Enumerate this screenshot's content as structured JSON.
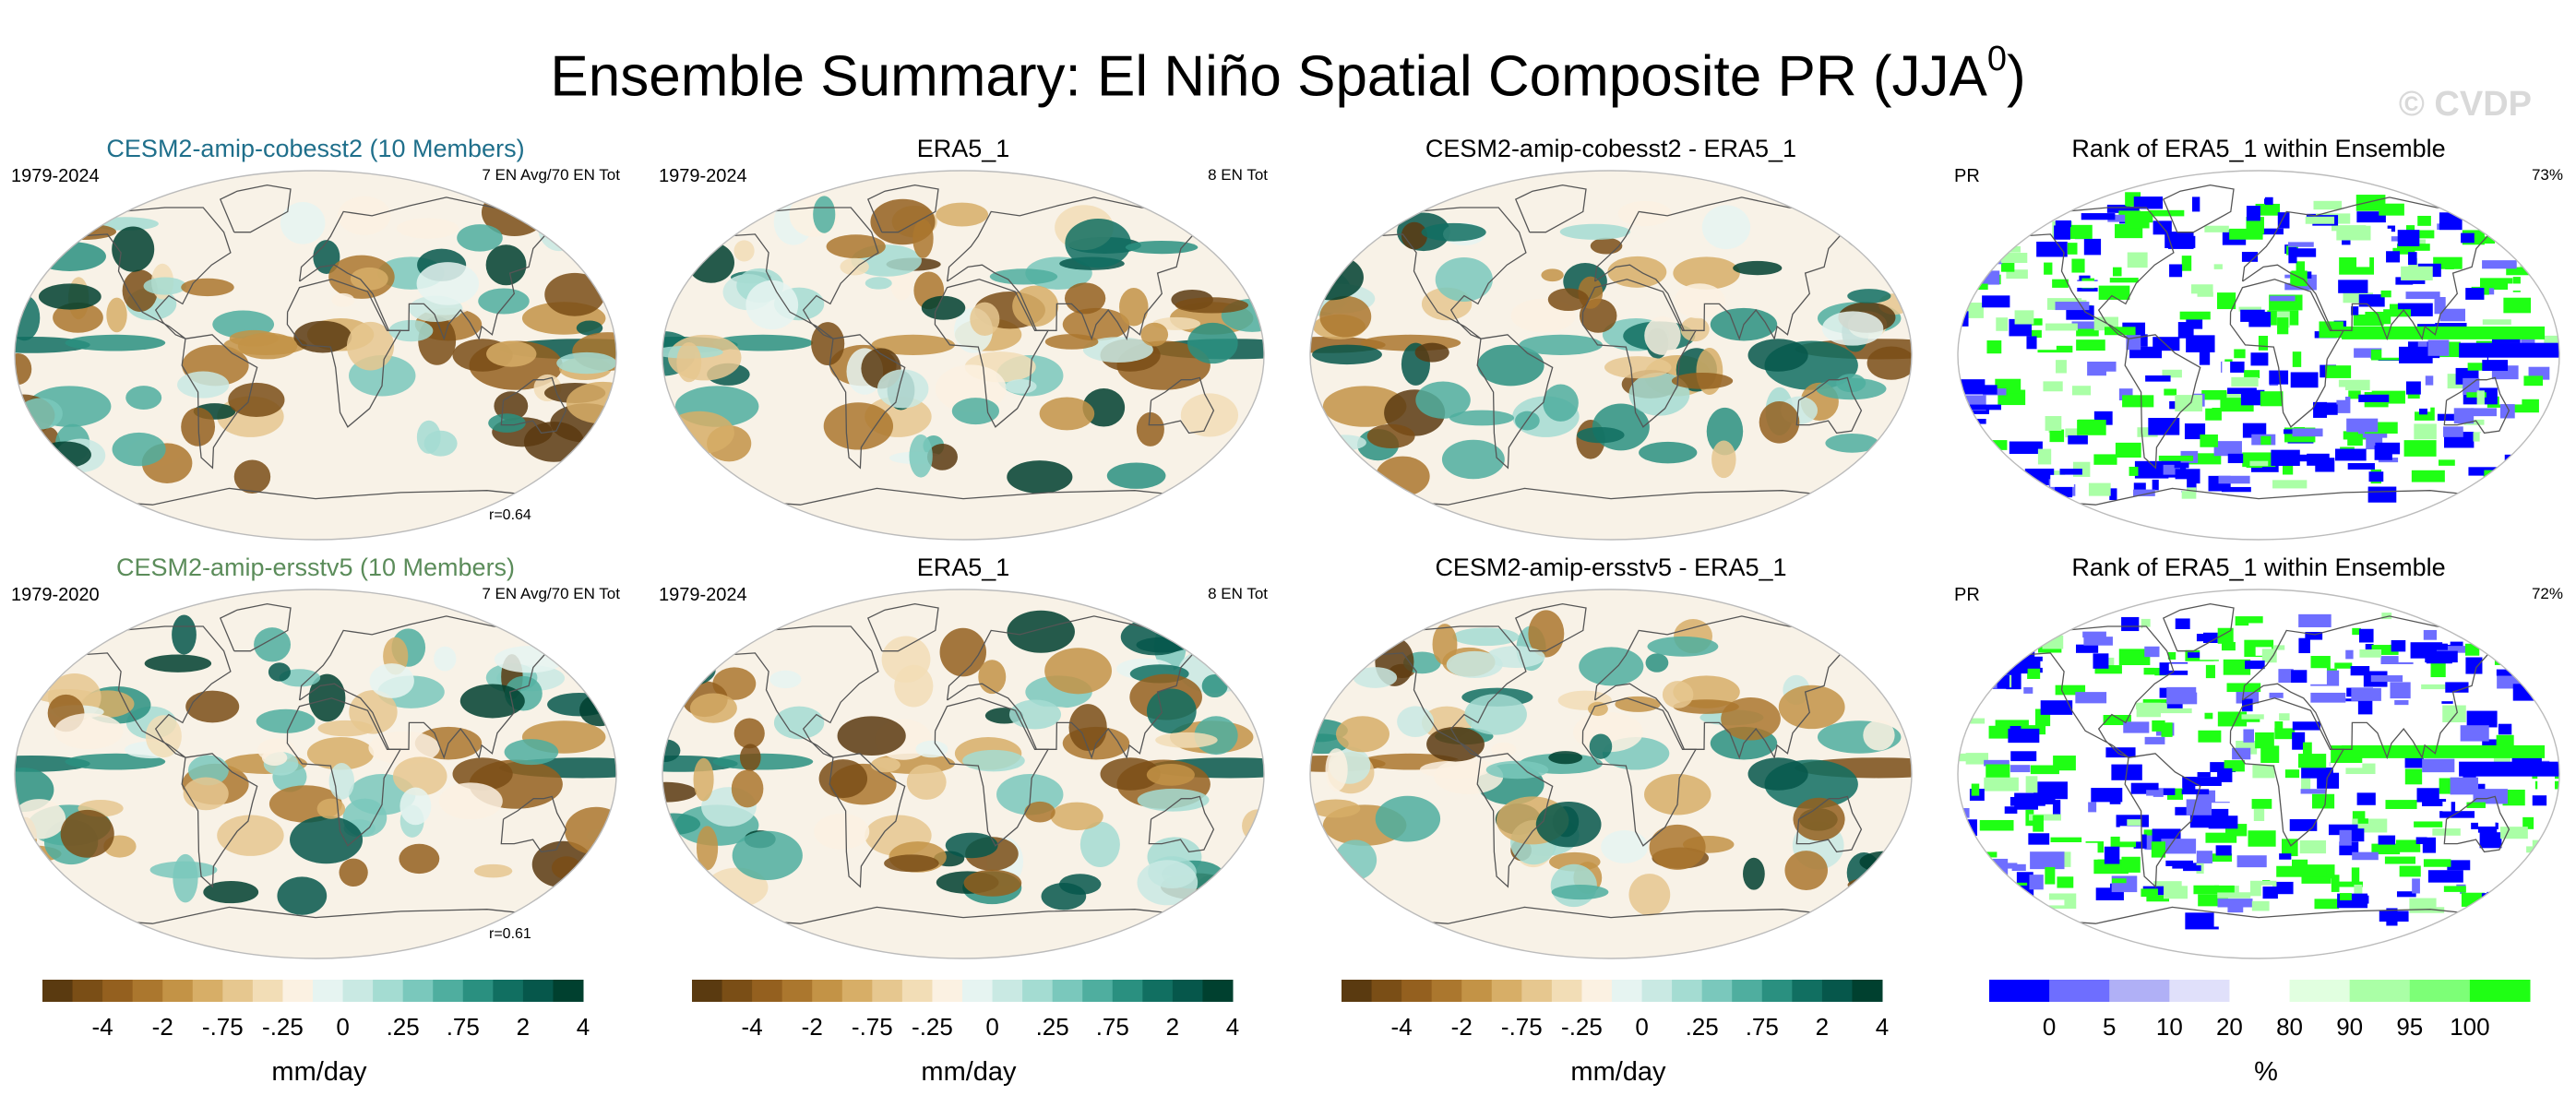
{
  "title": {
    "main": "Ensemble Summary: El Niño Spatial Composite PR (JJA",
    "sup": "0",
    "close": ")"
  },
  "watermark": "© CVDP",
  "colors": {
    "brown": [
      "#5a3a10",
      "#7a4e16",
      "#94601f",
      "#ab772e",
      "#c39346",
      "#d7ae67",
      "#e6c78f",
      "#f2ddb6",
      "#fbf1e2",
      "#e6f4f1",
      "#c9e9e3",
      "#a4dcd2",
      "#7ac8bc",
      "#4fae9f",
      "#2a9080",
      "#116f61",
      "#06574b",
      "#00402f"
    ],
    "rank": [
      "#0000ff",
      "#6e6eff",
      "#b0b0f6",
      "#e0e0fa",
      "#ffffff",
      "#e1ffe0",
      "#aaffa6",
      "#7dff77",
      "#1fff14"
    ]
  },
  "panels": [
    {
      "title": "CESM2-amip-cobesst2 (10 Members)",
      "title_color": "#1f6f8b",
      "left": "1979-2024",
      "right": "7 EN Avg/70 EN Tot",
      "corr": "r=0.64",
      "kind": "div"
    },
    {
      "title": "ERA5_1",
      "title_color": "#000000",
      "left": "1979-2024",
      "right": "8 EN Tot",
      "corr": "",
      "kind": "div"
    },
    {
      "title": "CESM2-amip-cobesst2 - ERA5_1",
      "title_color": "#000000",
      "left": "",
      "right": "",
      "corr": "",
      "kind": "div"
    },
    {
      "title": "Rank of ERA5_1 within Ensemble",
      "title_color": "#000000",
      "left": "PR",
      "right": "73%",
      "corr": "",
      "kind": "rank"
    },
    {
      "title": "CESM2-amip-ersstv5 (10 Members)",
      "title_color": "#5b8c5a",
      "left": "1979-2020",
      "right": "7 EN Avg/70 EN Tot",
      "corr": "r=0.61",
      "kind": "div"
    },
    {
      "title": "ERA5_1",
      "title_color": "#000000",
      "left": "1979-2024",
      "right": "8 EN Tot",
      "corr": "",
      "kind": "div"
    },
    {
      "title": "CESM2-amip-ersstv5 - ERA5_1",
      "title_color": "#000000",
      "left": "",
      "right": "",
      "corr": "",
      "kind": "div"
    },
    {
      "title": "Rank of ERA5_1 within Ensemble",
      "title_color": "#000000",
      "left": "PR",
      "right": "72%",
      "corr": "",
      "kind": "rank"
    }
  ],
  "colorbars": [
    {
      "ticks": [
        "-4",
        "-2",
        "-.75",
        "-.25",
        "0",
        ".25",
        ".75",
        "2",
        "4"
      ],
      "label": "mm/day",
      "kind": "div"
    },
    {
      "ticks": [
        "-4",
        "-2",
        "-.75",
        "-.25",
        "0",
        ".25",
        ".75",
        "2",
        "4"
      ],
      "label": "mm/day",
      "kind": "div"
    },
    {
      "ticks": [
        "-4",
        "-2",
        "-.75",
        "-.25",
        "0",
        ".25",
        ".75",
        "2",
        "4"
      ],
      "label": "mm/day",
      "kind": "div"
    },
    {
      "ticks": [
        "0",
        "5",
        "10",
        "20",
        "80",
        "90",
        "95",
        "100"
      ],
      "label": "%",
      "kind": "rank"
    }
  ],
  "chart_data": {
    "type": "heatmap",
    "title": "Ensemble Summary: El Niño Spatial Composite PR (JJA0)",
    "variable": "PR",
    "units": "mm/day",
    "contour_levels": [
      -4,
      -2,
      -0.75,
      -0.25,
      0,
      0.25,
      0.75,
      2,
      4
    ],
    "rank_levels": [
      0,
      5,
      10,
      20,
      80,
      90,
      95,
      100
    ],
    "panels": [
      {
        "name": "CESM2-amip-cobesst2 (10 Members)",
        "years": "1979-2024",
        "events": "7 EN Avg/70 EN Tot",
        "pattern_correlation": 0.64
      },
      {
        "name": "ERA5_1",
        "years": "1979-2024",
        "events": "8 EN Tot"
      },
      {
        "name": "CESM2-amip-cobesst2 - ERA5_1"
      },
      {
        "name": "Rank of ERA5_1 within Ensemble",
        "percent": 73
      },
      {
        "name": "CESM2-amip-ersstv5 (10 Members)",
        "years": "1979-2020",
        "events": "7 EN Avg/70 EN Tot",
        "pattern_correlation": 0.61
      },
      {
        "name": "ERA5_1",
        "years": "1979-2024",
        "events": "8 EN Tot"
      },
      {
        "name": "CESM2-amip-ersstv5 - ERA5_1"
      },
      {
        "name": "Rank of ERA5_1 within Ensemble",
        "percent": 72
      }
    ]
  }
}
